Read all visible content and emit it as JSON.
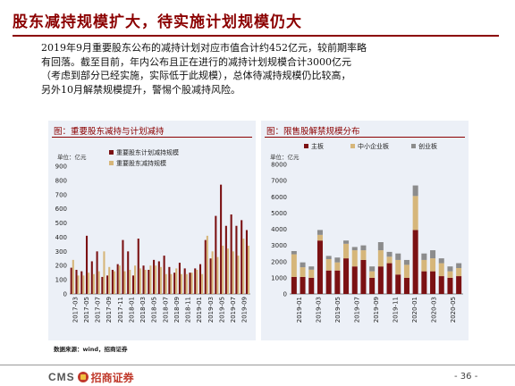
{
  "slide": {
    "title": "股东减持规模扩大，待实施计划规模仍大",
    "body_lines": [
      "2019年9月重要股东公布的减持计划对应市值合计约452亿元，较前期率略",
      "有回落。截至目前，年内公布且正在进行的减持计划规模合计3000亿元",
      "（考虑到部分已经实施，实际低于此规模），总体待减持规模仍比较高，",
      "另外10月解禁规模提升，警惕个股减持风险。"
    ],
    "source": "数据来源：wind，招商证券",
    "logo_text": "CMS",
    "logo_cn": "招商证券",
    "page_number": "- 36 -"
  },
  "colors": {
    "accent": "#8b0000",
    "panel_bg": "#ecf0f7"
  },
  "chart_data": [
    {
      "type": "bar",
      "title": "图：重要股东减持与计划减持",
      "unit_label": "单位：亿元",
      "ylim": [
        0,
        900
      ],
      "yticks": [
        0,
        100,
        200,
        300,
        400,
        500,
        600,
        700,
        800,
        900
      ],
      "xticks": [
        "2017-03",
        "2017-05",
        "2017-07",
        "2017-09",
        "2017-11",
        "2018-01",
        "2018-03",
        "2018-05",
        "2018-07",
        "2018-09",
        "2018-11",
        "2019-01",
        "2019-03",
        "2019-05",
        "2019-07",
        "2019-09"
      ],
      "legend": "top-left",
      "series": [
        {
          "name": "重要股东计划减持规模",
          "color": "#7b1113",
          "values": [
            185,
            170,
            160,
            410,
            230,
            300,
            120,
            130,
            170,
            210,
            380,
            300,
            130,
            390,
            200,
            170,
            240,
            230,
            270,
            190,
            150,
            220,
            180,
            150,
            180,
            210,
            380,
            250,
            550,
            770,
            480,
            560,
            480,
            520,
            450
          ]
        },
        {
          "name": "重要股东减持规模",
          "color": "#d6b67a",
          "values": [
            240,
            130,
            130,
            150,
            140,
            160,
            300,
            190,
            160,
            200,
            160,
            170,
            200,
            180,
            170,
            200,
            200,
            190,
            140,
            140,
            180,
            140,
            140,
            150,
            170,
            140,
            410,
            300,
            260,
            340,
            320,
            300,
            270,
            390,
            340
          ]
        }
      ]
    },
    {
      "type": "bar",
      "stacked": true,
      "title": "图：限售股解禁规模分布",
      "unit_label": "单位：亿元",
      "ylim": [
        0,
        8000
      ],
      "yticks": [
        0,
        1000,
        2000,
        3000,
        4000,
        5000,
        6000,
        7000,
        8000
      ],
      "xticks": [
        "2019-01",
        "2019-03",
        "2019-05",
        "2019-07",
        "2019-09",
        "2019-11",
        "2020-01",
        "2020-03",
        "2020-05"
      ],
      "legend": "top",
      "series": [
        {
          "name": "主板",
          "color": "#7b1113",
          "values": [
            1050,
            1050,
            1000,
            3300,
            1450,
            1450,
            2200,
            1700,
            2100,
            1000,
            1700,
            1900,
            1200,
            1000,
            3950,
            1400,
            1400,
            1100,
            1000,
            1100
          ]
        },
        {
          "name": "中小企业板",
          "color": "#d6b67a",
          "values": [
            1400,
            600,
            500,
            350,
            700,
            500,
            900,
            1000,
            600,
            400,
            1000,
            400,
            900,
            800,
            2100,
            700,
            800,
            800,
            400,
            500
          ]
        },
        {
          "name": "创业板",
          "color": "#8c8c8c",
          "values": [
            200,
            300,
            200,
            300,
            200,
            300,
            200,
            200,
            300,
            300,
            500,
            300,
            400,
            300,
            650,
            400,
            500,
            300,
            300,
            300
          ]
        }
      ]
    }
  ]
}
